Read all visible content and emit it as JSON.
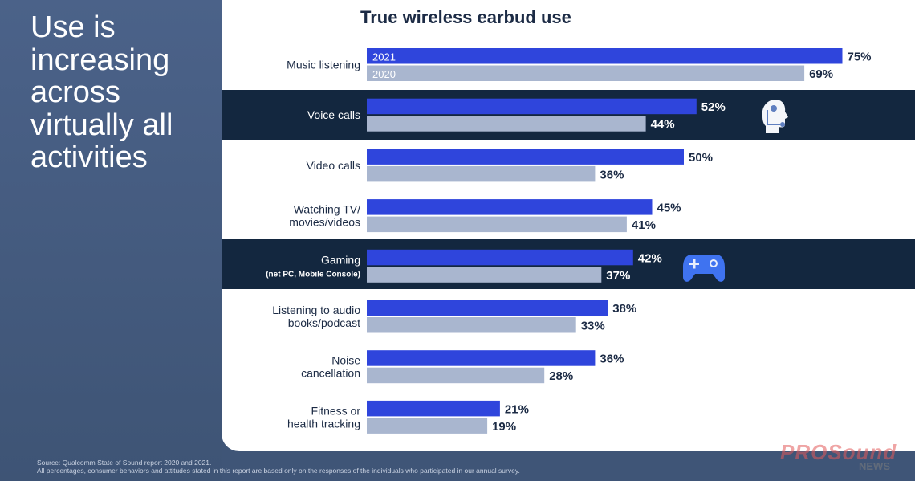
{
  "slide": {
    "headline": "Use is increasing across virtually all activities",
    "source_line_1": "Source: Qualcomm State of Sound report 2020 and 2021.",
    "source_line_2": "All percentages, consumer behaviors and attitudes stated in this report are based only on the responses of the individuals who participated in our annual survey.",
    "watermark_main": "PROSound",
    "watermark_sub": "NEWS"
  },
  "icons": {
    "voice_calls": "headset-head-icon",
    "gaming": "gamepad-icon"
  },
  "colors": {
    "series_2021": "#2f45dc",
    "series_2020": "#a9b6cf",
    "dark_band": "#13273f",
    "icon_blue": "#3f73f0"
  },
  "chart_data": {
    "type": "bar",
    "orientation": "horizontal",
    "title": "True wireless earbud use",
    "categories": [
      [
        "Music listening"
      ],
      [
        "Voice calls"
      ],
      [
        "Video calls"
      ],
      [
        "Watching TV/",
        "movies/videos"
      ],
      [
        "Gaming",
        "(net PC, Mobile Console)"
      ],
      [
        "Listening to audio",
        "books/podcast"
      ],
      [
        "Noise",
        "cancellation"
      ],
      [
        "Fitness or",
        "health tracking"
      ]
    ],
    "highlighted_categories": [
      1,
      4
    ],
    "series": [
      {
        "name": "2021",
        "values": [
          75,
          52,
          50,
          45,
          42,
          38,
          36,
          21
        ]
      },
      {
        "name": "2020",
        "values": [
          69,
          44,
          36,
          41,
          37,
          33,
          28,
          19
        ]
      }
    ],
    "value_suffix": "%",
    "legend": "inside first bars",
    "xlim": [
      0,
      100
    ],
    "grid": false
  }
}
